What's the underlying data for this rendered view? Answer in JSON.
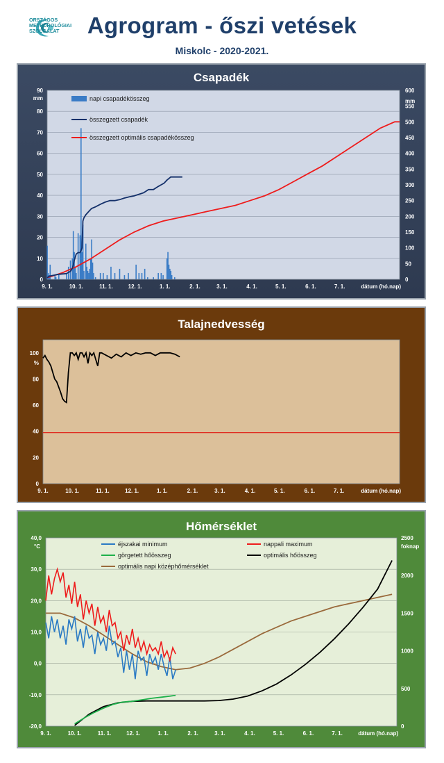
{
  "header": {
    "logo_text": "ORSZÁGOS\nMETEOROLÓGIAI\nSZOLGÁLAT",
    "title": "Agrogram - őszi vetések",
    "subtitle": "Miskolc - 2020-2021."
  },
  "colors": {
    "panel1_bg": "#35435a",
    "plot1_bg": "#d1d8e6",
    "panel2_bg": "#6b3a0c",
    "plot2_bg": "#dcc09a",
    "panel3_bg": "#4f8a3a",
    "plot3_bg": "#e6efd9",
    "daily_precip_bar": "#3a7cc6",
    "cum_precip": "#14306a",
    "optimal_precip": "#ee1c1c",
    "soil_moisture": "#000000",
    "soil_threshold": "#e0261c",
    "night_min": "#2a7ac4",
    "day_max": "#ee1c1c",
    "rolling_heat": "#1db04a",
    "optimal_heat": "#000000",
    "optimal_mean": "#9a6a3c"
  },
  "x_tick_labels": [
    "9. 1.",
    "10. 1.",
    "11. 1.",
    "12. 1.",
    "1. 1.",
    "2. 1.",
    "3. 1.",
    "4. 1.",
    "5. 1.",
    "6. 1.",
    "7. 1."
  ],
  "x_axis_label": "dátum (hó.nap)",
  "chart_data": [
    {
      "type": "bar",
      "title": "Csapadék",
      "ylabel_left": "mm",
      "ylabel_right": "mm",
      "ylim_left": [
        0,
        90
      ],
      "ylim_right": [
        0,
        600
      ],
      "yticks_left": [
        "0",
        "10",
        "20",
        "30",
        "40",
        "50",
        "60",
        "70",
        "80",
        "90"
      ],
      "yticks_right": [
        "0",
        "50",
        "100",
        "150",
        "200",
        "250",
        "300",
        "350",
        "400",
        "450",
        "500",
        "550",
        "600"
      ],
      "x_unit": "days since Sept 1",
      "legend": [
        "napi csapadékösszeg",
        "összegzett csapadék",
        "összegzett optimális csapadékösszeg"
      ],
      "legend_position": "top-left",
      "grid": true,
      "series": [
        {
          "name": "napi csapadékösszeg",
          "kind": "bar",
          "axis": "left",
          "x": [
            0,
            1,
            2,
            3,
            8,
            9,
            12,
            20,
            22,
            24,
            26,
            27,
            28,
            29,
            30,
            32,
            34,
            35,
            36,
            37,
            38,
            40,
            41,
            42,
            43,
            44,
            45,
            46,
            47,
            48,
            50,
            55,
            58,
            62,
            66,
            70,
            75,
            80,
            84,
            92,
            95,
            98,
            101,
            104,
            110,
            115,
            118,
            120,
            124,
            125,
            126,
            127,
            128,
            129,
            132
          ],
          "values": [
            16,
            3,
            2,
            7,
            2,
            1,
            2,
            3,
            6,
            9,
            10,
            23,
            13,
            6,
            3,
            22,
            21,
            72,
            13,
            26,
            4,
            17,
            6,
            4,
            3,
            5,
            10,
            19,
            8,
            3,
            1,
            3,
            3,
            2,
            6,
            3,
            5,
            2,
            3,
            7,
            3,
            3,
            5,
            1,
            1,
            3,
            3,
            2,
            10,
            13,
            7,
            5,
            4,
            2,
            1
          ]
        },
        {
          "name": "összegzett csapadék",
          "kind": "line",
          "axis": "right",
          "x": [
            0,
            2,
            5,
            10,
            15,
            20,
            22,
            24,
            26,
            27,
            28,
            29,
            30,
            32,
            34,
            35,
            36,
            37,
            38,
            40,
            43,
            46,
            50,
            55,
            60,
            65,
            70,
            75,
            80,
            85,
            90,
            95,
            100,
            105,
            110,
            115,
            118,
            121,
            124,
            126,
            128,
            132,
            140
          ],
          "values": [
            5,
            10,
            12,
            15,
            17,
            18,
            22,
            25,
            35,
            45,
            60,
            70,
            80,
            85,
            85,
            90,
            100,
            185,
            195,
            205,
            215,
            225,
            230,
            238,
            245,
            250,
            250,
            253,
            258,
            262,
            265,
            270,
            275,
            285,
            285,
            295,
            300,
            305,
            315,
            320,
            325,
            325,
            325
          ]
        },
        {
          "name": "összegzett optimális csapadékösszeg",
          "kind": "line",
          "axis": "right",
          "x": [
            0,
            15,
            30,
            45,
            60,
            75,
            90,
            105,
            120,
            135,
            150,
            165,
            180,
            195,
            210,
            225,
            240,
            255,
            270,
            285,
            300,
            315,
            330,
            345,
            360,
            365
          ],
          "values": [
            5,
            20,
            40,
            65,
            95,
            125,
            150,
            170,
            185,
            195,
            205,
            215,
            225,
            235,
            250,
            265,
            285,
            310,
            335,
            360,
            390,
            420,
            450,
            480,
            500,
            500
          ]
        }
      ]
    },
    {
      "type": "line",
      "title": "Talajnedvesség",
      "ylabel": "%",
      "ylim": [
        0,
        110
      ],
      "yticks": [
        "0",
        "20",
        "40",
        "60",
        "80",
        "100"
      ],
      "grid": false,
      "series": [
        {
          "name": "",
          "x": [
            0,
            2,
            4,
            6,
            8,
            10,
            12,
            14,
            16,
            18,
            20,
            22,
            24,
            26,
            28,
            30,
            32,
            34,
            36,
            38,
            40,
            42,
            44,
            46,
            48,
            50,
            52,
            54,
            56,
            58,
            60,
            65,
            70,
            75,
            80,
            85,
            90,
            95,
            100,
            105,
            110,
            115,
            120,
            125,
            130,
            135,
            140
          ],
          "values": [
            96,
            98,
            95,
            93,
            90,
            85,
            80,
            78,
            74,
            70,
            65,
            63,
            62,
            85,
            100,
            100,
            98,
            100,
            95,
            100,
            100,
            97,
            100,
            92,
            100,
            98,
            100,
            95,
            90,
            100,
            100,
            98,
            96,
            99,
            97,
            100,
            98,
            100,
            99,
            100,
            100,
            98,
            100,
            100,
            100,
            99,
            97
          ]
        },
        {
          "name": "",
          "x": [
            0,
            365
          ],
          "values": [
            39,
            39
          ]
        }
      ]
    },
    {
      "type": "line",
      "title": "Hőmérséklet",
      "ylabel_left": "°C",
      "ylabel_right": "foknap",
      "ylim_left": [
        -20,
        40
      ],
      "ylim_right": [
        0,
        2500
      ],
      "yticks_left": [
        "-20,0",
        "-10,0",
        "0,0",
        "10,0",
        "20,0",
        "30,0",
        "40,0"
      ],
      "yticks_right": [
        "0",
        "500",
        "1000",
        "1500",
        "2000",
        "2500"
      ],
      "legend": [
        "éjszakai minimum",
        "nappali maximum",
        "görgetett hőösszeg",
        "optimális hőösszeg",
        "optimális napi középhőmérséklet"
      ],
      "legend_position": "top",
      "grid": true,
      "series": [
        {
          "name": "éjszakai minimum",
          "axis": "left",
          "x": [
            0,
            3,
            6,
            9,
            12,
            15,
            18,
            21,
            24,
            27,
            30,
            33,
            36,
            39,
            42,
            45,
            48,
            51,
            54,
            57,
            60,
            63,
            66,
            69,
            72,
            75,
            78,
            81,
            84,
            87,
            90,
            93,
            96,
            99,
            102,
            105,
            108,
            111,
            114,
            117,
            120,
            123,
            126,
            129,
            132,
            135
          ],
          "values": [
            13,
            8,
            15,
            10,
            14,
            8,
            12,
            6,
            14,
            11,
            15,
            7,
            11,
            5,
            12,
            8,
            9,
            3,
            10,
            6,
            8,
            4,
            12,
            6,
            7,
            2,
            5,
            -3,
            4,
            -2,
            3,
            -5,
            4,
            1,
            2,
            -4,
            3,
            0,
            2,
            -2,
            3,
            -1,
            -4,
            2,
            -5,
            -2
          ]
        },
        {
          "name": "nappali maximum",
          "axis": "left",
          "x": [
            0,
            3,
            6,
            9,
            12,
            15,
            18,
            21,
            24,
            27,
            30,
            33,
            36,
            39,
            42,
            45,
            48,
            51,
            54,
            57,
            60,
            63,
            66,
            69,
            72,
            75,
            78,
            81,
            84,
            87,
            90,
            93,
            96,
            99,
            102,
            105,
            108,
            111,
            114,
            117,
            120,
            123,
            126,
            129,
            132,
            135
          ],
          "values": [
            20,
            28,
            22,
            27,
            30,
            26,
            29,
            21,
            25,
            19,
            26,
            18,
            22,
            14,
            20,
            16,
            19,
            12,
            18,
            13,
            15,
            10,
            17,
            12,
            13,
            8,
            10,
            4,
            9,
            6,
            11,
            5,
            8,
            4,
            7,
            3,
            6,
            4,
            5,
            3,
            7,
            2,
            4,
            1,
            5,
            3
          ]
        },
        {
          "name": "görgetett hőösszeg",
          "axis": "right",
          "x": [
            30,
            40,
            50,
            60,
            70,
            80,
            90,
            100,
            110,
            120,
            130,
            135
          ],
          "values": [
            30,
            110,
            180,
            240,
            290,
            320,
            330,
            350,
            370,
            385,
            400,
            410
          ]
        },
        {
          "name": "optimális hőösszeg",
          "axis": "right",
          "x": [
            30,
            45,
            60,
            75,
            90,
            105,
            120,
            135,
            150,
            165,
            180,
            195,
            210,
            225,
            240,
            255,
            270,
            285,
            300,
            315,
            330,
            345,
            360
          ],
          "values": [
            10,
            160,
            260,
            310,
            330,
            335,
            335,
            335,
            335,
            335,
            340,
            360,
            400,
            470,
            560,
            680,
            820,
            980,
            1160,
            1360,
            1580,
            1820,
            2200
          ]
        },
        {
          "name": "optimális napi középhőmérséklet",
          "axis": "left",
          "x": [
            0,
            15,
            30,
            45,
            60,
            75,
            90,
            105,
            120,
            135,
            150,
            165,
            180,
            195,
            210,
            225,
            240,
            255,
            270,
            285,
            300,
            315,
            330,
            345,
            360
          ],
          "values": [
            16,
            16,
            14.5,
            12,
            9,
            6,
            3,
            0.5,
            -1,
            -2,
            -1.5,
            0,
            2,
            4.5,
            7,
            9.5,
            11.5,
            13.5,
            15,
            16.5,
            18,
            19,
            20,
            21,
            22
          ]
        }
      ]
    }
  ]
}
